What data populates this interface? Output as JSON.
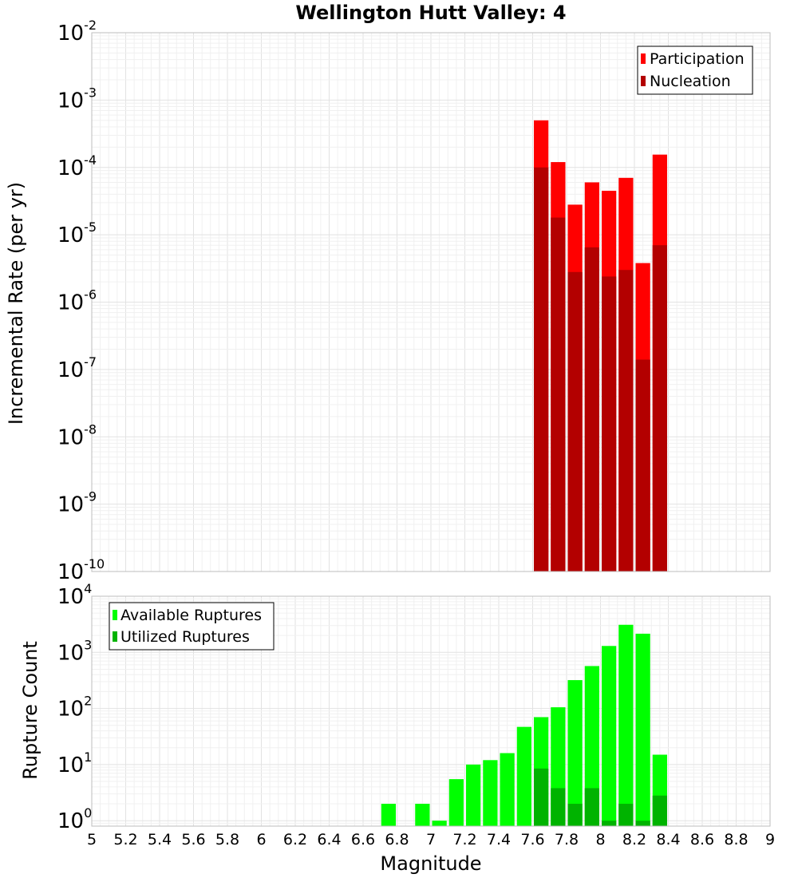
{
  "chart_data": [
    {
      "type": "bar",
      "title": "Wellington Hutt Valley: 4",
      "ylabel": "Incremental Rate (per yr)",
      "xlabel": "",
      "xlim": [
        5,
        9
      ],
      "ylim": [
        1e-10,
        0.01
      ],
      "yscale": "log",
      "ytick_exponents": [
        -10,
        -9,
        -8,
        -7,
        -6,
        -5,
        -4,
        -3,
        -2
      ],
      "grid": true,
      "legend_position": "top-right",
      "overlay": true,
      "x": [
        7.65,
        7.75,
        7.85,
        7.95,
        8.05,
        8.15,
        8.25,
        8.35
      ],
      "series": [
        {
          "name": "Participation",
          "color": "#ff0000",
          "values": [
            0.0005,
            0.00012,
            2.8e-05,
            6e-05,
            4.5e-05,
            7e-05,
            3.8e-06,
            0.000155
          ]
        },
        {
          "name": "Nucleation",
          "color": "#b30000",
          "values": [
            0.0001,
            1.8e-05,
            2.8e-06,
            6.5e-06,
            2.4e-06,
            3e-06,
            1.4e-07,
            7e-06
          ]
        }
      ]
    },
    {
      "type": "bar",
      "title": "",
      "ylabel": "Rupture Count",
      "xlabel": "Magnitude",
      "xlim": [
        5,
        9
      ],
      "ylim": [
        0.8,
        10000
      ],
      "yscale": "log",
      "ytick_exponents": [
        0,
        1,
        2,
        3,
        4
      ],
      "xticks": [
        5,
        5.2,
        5.4,
        5.6,
        5.8,
        6,
        6.2,
        6.4,
        6.6,
        6.8,
        7,
        7.2,
        7.4,
        7.6,
        7.8,
        8,
        8.2,
        8.4,
        8.6,
        8.8,
        9
      ],
      "xtick_labels": [
        "5",
        "5.2",
        "5.4",
        "5.6",
        "5.8",
        "6",
        "6.2",
        "6.4",
        "6.6",
        "6.8",
        "7",
        "7.2",
        "7.4",
        "7.6",
        "7.8",
        "8",
        "8.2",
        "8.4",
        "8.6",
        "8.8",
        "9"
      ],
      "grid": true,
      "legend_position": "top-left",
      "overlay": true,
      "x": [
        6.75,
        6.95,
        7.05,
        7.15,
        7.25,
        7.35,
        7.45,
        7.55,
        7.65,
        7.75,
        7.85,
        7.95,
        8.05,
        8.15,
        8.25,
        8.35
      ],
      "series": [
        {
          "name": "Available Ruptures",
          "color": "#00ff00",
          "values": [
            2,
            2,
            1,
            5.5,
            10,
            12,
            16,
            47,
            70,
            105,
            320,
            570,
            1300,
            3100,
            2150,
            15
          ]
        },
        {
          "name": "Utilized Ruptures",
          "color": "#00b300",
          "values": [
            null,
            null,
            null,
            null,
            null,
            null,
            null,
            null,
            8.5,
            3.8,
            2,
            3.8,
            1,
            2,
            1,
            2.8
          ]
        }
      ]
    }
  ]
}
